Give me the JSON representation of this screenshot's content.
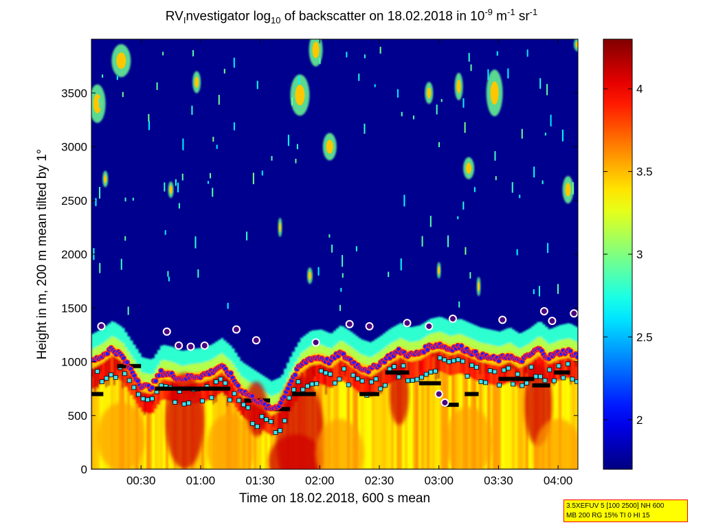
{
  "title": {
    "prefix": "RV",
    "sub1": "I",
    "mid1": "nvestigator log",
    "sub2": "10",
    "mid2": " of backscatter on 18.02.2018 in 10",
    "sup1": "-9",
    "mid3": " m",
    "sup2": "-1",
    "mid4": " sr",
    "sup3": "-1"
  },
  "info": {
    "line1": "3.5XEFUV 5 [100 2500] NH 600",
    "line2": "MB 200 RG 15% TI 0 HI 15"
  },
  "chart_data": {
    "type": "heatmap",
    "xlabel": "Time on 18.02.2018, 600 s mean",
    "ylabel": "Height in m, 200 m mean tilted by 1°",
    "xlim_minutes": [
      5,
      250
    ],
    "ylim": [
      0,
      4000
    ],
    "x_ticks": [
      {
        "t": 30,
        "label": "00:30"
      },
      {
        "t": 60,
        "label": "01:00"
      },
      {
        "t": 90,
        "label": "01:30"
      },
      {
        "t": 120,
        "label": "02:00"
      },
      {
        "t": 150,
        "label": "02:30"
      },
      {
        "t": 180,
        "label": "03:00"
      },
      {
        "t": 210,
        "label": "03:30"
      },
      {
        "t": 240,
        "label": "04:00"
      }
    ],
    "y_ticks": [
      0,
      500,
      1000,
      1500,
      2000,
      2500,
      3000,
      3500
    ],
    "colorbar": {
      "min": 1.7,
      "max": 4.3,
      "ticks": [
        2,
        2.5,
        3,
        3.5,
        4
      ],
      "colormap": "jet"
    },
    "layer_top": {
      "t": [
        5,
        10,
        15,
        20,
        25,
        30,
        35,
        40,
        45,
        50,
        55,
        60,
        65,
        70,
        75,
        80,
        85,
        90,
        95,
        100,
        105,
        110,
        115,
        120,
        125,
        130,
        135,
        140,
        145,
        150,
        155,
        160,
        165,
        170,
        175,
        180,
        185,
        190,
        195,
        200,
        205,
        210,
        215,
        220,
        225,
        230,
        235,
        240,
        245,
        250
      ],
      "height": [
        1000,
        1050,
        1120,
        1060,
        920,
        780,
        760,
        900,
        880,
        840,
        860,
        870,
        900,
        960,
        880,
        740,
        680,
        620,
        560,
        600,
        800,
        960,
        1030,
        1040,
        1000,
        1080,
        1020,
        950,
        920,
        980,
        1050,
        1100,
        1060,
        1080,
        1140,
        1160,
        1120,
        1140,
        1100,
        1060,
        1040,
        1020,
        1060,
        1000,
        1050,
        1120,
        1040,
        1080,
        1100,
        1050
      ]
    },
    "markers": [
      {
        "name": "gradient-max",
        "color": "#ff0000",
        "fill": "#1f1fff"
      },
      {
        "name": "mixing-height",
        "color": "#000000"
      },
      {
        "name": "cloud-base",
        "color": "#40e0f0"
      }
    ]
  }
}
